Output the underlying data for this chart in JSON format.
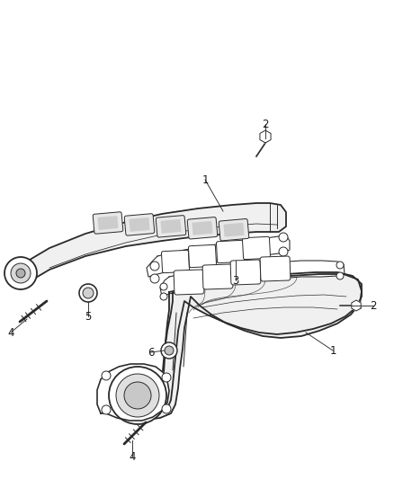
{
  "bg_color": "#ffffff",
  "fig_width": 4.38,
  "fig_height": 5.33,
  "dpi": 100,
  "lc": "#2a2a2a",
  "lw_main": 1.3,
  "lw_thin": 0.7,
  "fill_light": "#f5f5f5",
  "fill_white": "#ffffff",
  "fill_mid": "#e0e0e0",
  "fill_dark": "#c8c8c8",
  "label_fontsize": 8.5,
  "label_color": "#1a1a1a"
}
